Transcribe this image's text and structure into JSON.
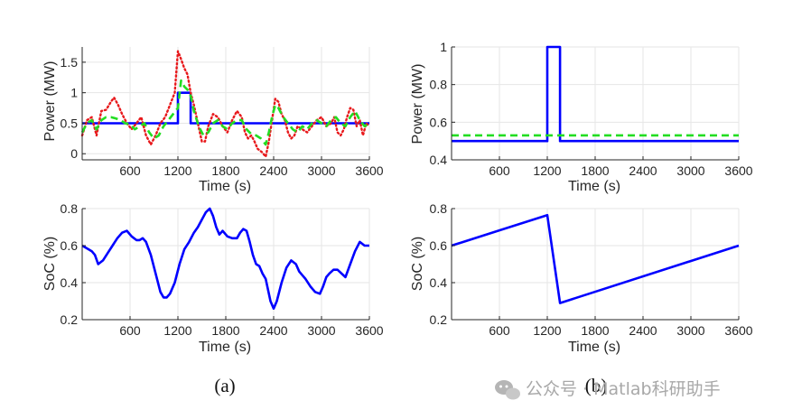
{
  "chart_data": [
    {
      "type": "line",
      "panel": "a-top",
      "xlabel": "Time (s)",
      "ylabel": "Power (MW)",
      "xlim": [
        0,
        3600
      ],
      "ylim": [
        -0.1,
        1.75
      ],
      "xticks": [
        600,
        1200,
        1800,
        2400,
        3000,
        3600
      ],
      "yticks": [
        0,
        0.5,
        1,
        1.5
      ],
      "grid": true,
      "series": [
        {
          "style": "solid",
          "color": "#0000ff",
          "x": [
            0,
            1200,
            1200,
            1360,
            1360,
            3600
          ],
          "y": [
            0.5,
            0.5,
            1.0,
            1.0,
            0.5,
            0.5
          ]
        },
        {
          "style": "dotted",
          "color": "#e8191c",
          "x": [
            0,
            60,
            120,
            180,
            240,
            300,
            360,
            400,
            450,
            500,
            560,
            620,
            680,
            740,
            800,
            860,
            920,
            980,
            1040,
            1100,
            1160,
            1200,
            1240,
            1280,
            1320,
            1360,
            1400,
            1450,
            1500,
            1540,
            1580,
            1640,
            1700,
            1760,
            1820,
            1880,
            1940,
            2000,
            2040,
            2080,
            2120,
            2160,
            2200,
            2260,
            2300,
            2340,
            2380,
            2420,
            2460,
            2500,
            2540,
            2580,
            2620,
            2660,
            2700,
            2760,
            2820,
            2880,
            2940,
            3000,
            3060,
            3120,
            3160,
            3200,
            3240,
            3280,
            3320,
            3360,
            3400,
            3440,
            3480,
            3520,
            3560,
            3600
          ],
          "y": [
            0.3,
            0.55,
            0.6,
            0.3,
            0.7,
            0.72,
            0.85,
            0.92,
            0.8,
            0.65,
            0.5,
            0.4,
            0.5,
            0.6,
            0.3,
            0.15,
            0.3,
            0.5,
            0.6,
            0.8,
            1.0,
            1.68,
            1.55,
            1.4,
            1.3,
            1.0,
            0.8,
            0.5,
            0.2,
            0.2,
            0.45,
            0.65,
            0.6,
            0.45,
            0.35,
            0.55,
            0.7,
            0.6,
            0.35,
            0.25,
            0.3,
            0.2,
            0.08,
            0.02,
            -0.05,
            0.2,
            0.55,
            0.9,
            0.85,
            0.65,
            0.55,
            0.35,
            0.25,
            0.3,
            0.45,
            0.4,
            0.35,
            0.45,
            0.55,
            0.6,
            0.45,
            0.5,
            0.6,
            0.35,
            0.3,
            0.4,
            0.6,
            0.75,
            0.72,
            0.45,
            0.55,
            0.3,
            0.5,
            0.45
          ]
        },
        {
          "style": "dashed",
          "color": "#22dd22",
          "x": [
            0,
            60,
            120,
            180,
            240,
            300,
            360,
            420,
            480,
            540,
            600,
            660,
            720,
            780,
            840,
            900,
            960,
            1020,
            1080,
            1140,
            1200,
            1240,
            1280,
            1320,
            1360,
            1400,
            1460,
            1520,
            1580,
            1640,
            1700,
            1760,
            1820,
            1880,
            1940,
            2000,
            2060,
            2120,
            2180,
            2240,
            2300,
            2340,
            2380,
            2420,
            2460,
            2520,
            2580,
            2640,
            2700,
            2760,
            2820,
            2880,
            2940,
            3000,
            3060,
            3120,
            3180,
            3240,
            3300,
            3360,
            3420,
            3480,
            3540,
            3600
          ],
          "y": [
            0.35,
            0.5,
            0.55,
            0.4,
            0.55,
            0.6,
            0.6,
            0.58,
            0.55,
            0.5,
            0.48,
            0.4,
            0.45,
            0.5,
            0.35,
            0.25,
            0.3,
            0.45,
            0.55,
            0.65,
            0.75,
            1.2,
            1.1,
            1.05,
            0.95,
            0.7,
            0.45,
            0.3,
            0.35,
            0.5,
            0.55,
            0.45,
            0.4,
            0.5,
            0.55,
            0.55,
            0.4,
            0.32,
            0.3,
            0.25,
            0.15,
            0.35,
            0.6,
            0.8,
            0.75,
            0.6,
            0.5,
            0.4,
            0.35,
            0.45,
            0.4,
            0.5,
            0.55,
            0.5,
            0.45,
            0.55,
            0.6,
            0.5,
            0.45,
            0.6,
            0.7,
            0.55,
            0.45,
            0.5
          ]
        }
      ]
    },
    {
      "type": "line",
      "panel": "b-top",
      "xlabel": "Time (s)",
      "ylabel": "Power (MW)",
      "xlim": [
        0,
        3600
      ],
      "ylim": [
        0.4,
        1.0
      ],
      "xticks": [
        600,
        1200,
        1800,
        2400,
        3000,
        3600
      ],
      "yticks": [
        0.4,
        0.6,
        0.8,
        1
      ],
      "grid": true,
      "series": [
        {
          "style": "solid",
          "color": "#0000ff",
          "x": [
            0,
            1200,
            1200,
            1360,
            1360,
            3600
          ],
          "y": [
            0.5,
            0.5,
            1.0,
            1.0,
            0.5,
            0.5
          ]
        },
        {
          "style": "dashed",
          "color": "#22dd22",
          "x": [
            0,
            3600
          ],
          "y": [
            0.53,
            0.53
          ]
        }
      ]
    },
    {
      "type": "line",
      "panel": "a-bottom",
      "xlabel": "Time (s)",
      "ylabel": "SoC (%)",
      "xlim": [
        0,
        3600
      ],
      "ylim": [
        0.2,
        0.8
      ],
      "xticks": [
        600,
        1200,
        1800,
        2400,
        3000,
        3600
      ],
      "yticks": [
        0.2,
        0.4,
        0.6,
        0.8
      ],
      "grid": true,
      "series": [
        {
          "style": "solid",
          "color": "#0000ff",
          "x": [
            0,
            80,
            120,
            160,
            200,
            260,
            320,
            380,
            440,
            500,
            560,
            620,
            680,
            720,
            760,
            800,
            860,
            920,
            980,
            1020,
            1060,
            1100,
            1160,
            1220,
            1280,
            1340,
            1400,
            1450,
            1500,
            1550,
            1600,
            1640,
            1680,
            1720,
            1760,
            1820,
            1880,
            1940,
            1980,
            2020,
            2060,
            2100,
            2140,
            2180,
            2220,
            2260,
            2300,
            2360,
            2400,
            2440,
            2500,
            2560,
            2620,
            2680,
            2720,
            2760,
            2800,
            2860,
            2920,
            2980,
            3020,
            3060,
            3100,
            3150,
            3200,
            3250,
            3300,
            3360,
            3420,
            3480,
            3540,
            3600
          ],
          "y": [
            0.6,
            0.58,
            0.57,
            0.55,
            0.5,
            0.52,
            0.56,
            0.6,
            0.64,
            0.67,
            0.68,
            0.65,
            0.63,
            0.63,
            0.64,
            0.62,
            0.55,
            0.45,
            0.35,
            0.32,
            0.32,
            0.34,
            0.4,
            0.5,
            0.58,
            0.62,
            0.67,
            0.7,
            0.74,
            0.78,
            0.8,
            0.76,
            0.7,
            0.66,
            0.68,
            0.65,
            0.64,
            0.64,
            0.67,
            0.69,
            0.68,
            0.62,
            0.55,
            0.5,
            0.49,
            0.45,
            0.42,
            0.3,
            0.26,
            0.3,
            0.4,
            0.48,
            0.52,
            0.5,
            0.46,
            0.44,
            0.42,
            0.38,
            0.35,
            0.34,
            0.38,
            0.43,
            0.45,
            0.47,
            0.47,
            0.45,
            0.43,
            0.5,
            0.57,
            0.62,
            0.6,
            0.6
          ]
        }
      ]
    },
    {
      "type": "line",
      "panel": "b-bottom",
      "xlabel": "Time (s)",
      "ylabel": "SoC (%)",
      "xlim": [
        0,
        3600
      ],
      "ylim": [
        0.2,
        0.8
      ],
      "xticks": [
        600,
        1200,
        1800,
        2400,
        3000,
        3600
      ],
      "yticks": [
        0.2,
        0.4,
        0.6,
        0.8
      ],
      "grid": true,
      "series": [
        {
          "style": "solid",
          "color": "#0000ff",
          "x": [
            0,
            1200,
            1360,
            3600
          ],
          "y": [
            0.6,
            0.765,
            0.29,
            0.6
          ]
        }
      ]
    }
  ],
  "captions": {
    "a": "(a)",
    "b": "(b)"
  },
  "watermark": "公众号 · Matlab科研助手"
}
